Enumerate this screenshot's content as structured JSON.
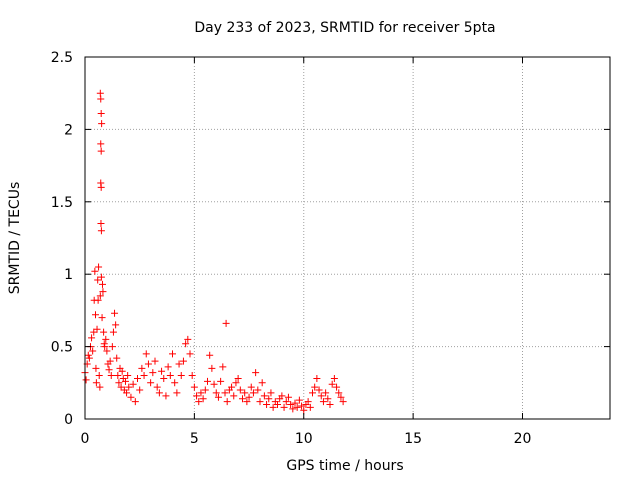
{
  "chart_data": {
    "type": "scatter",
    "title": "Day 233 of 2023, SRMTID for receiver 5pta",
    "xlabel": "GPS time / hours",
    "ylabel": "SRMTID / TECUs",
    "xlim": [
      0,
      24
    ],
    "ylim": [
      0,
      2.5
    ],
    "x_ticks": [
      0,
      5,
      10,
      15,
      20
    ],
    "x_tick_labels": [
      "0",
      "5",
      "10",
      "15",
      "20"
    ],
    "y_ticks": [
      0,
      0.5,
      1,
      1.5,
      2,
      2.5
    ],
    "y_tick_labels": [
      "0",
      "0.5",
      "1",
      "1.5",
      "2",
      "2.5"
    ],
    "grid": true,
    "marker": "+",
    "color": "#ff0000",
    "series": [
      {
        "name": "SRMTID",
        "points": [
          [
            0.0,
            0.32
          ],
          [
            0.05,
            0.27
          ],
          [
            0.1,
            0.38
          ],
          [
            0.15,
            0.44
          ],
          [
            0.2,
            0.42
          ],
          [
            0.25,
            0.5
          ],
          [
            0.3,
            0.56
          ],
          [
            0.35,
            0.47
          ],
          [
            0.4,
            0.6
          ],
          [
            0.42,
            0.82
          ],
          [
            0.45,
            1.02
          ],
          [
            0.48,
            0.72
          ],
          [
            0.5,
            0.35
          ],
          [
            0.52,
            0.25
          ],
          [
            0.55,
            0.62
          ],
          [
            0.58,
            0.96
          ],
          [
            0.6,
            0.82
          ],
          [
            0.62,
            1.05
          ],
          [
            0.65,
            0.3
          ],
          [
            0.68,
            0.22
          ],
          [
            0.7,
            0.85
          ],
          [
            0.7,
            2.25
          ],
          [
            0.72,
            2.21
          ],
          [
            0.74,
            2.11
          ],
          [
            0.76,
            2.04
          ],
          [
            0.72,
            1.9
          ],
          [
            0.74,
            1.85
          ],
          [
            0.72,
            1.63
          ],
          [
            0.74,
            1.6
          ],
          [
            0.73,
            1.35
          ],
          [
            0.75,
            1.3
          ],
          [
            0.75,
            0.98
          ],
          [
            0.78,
            0.7
          ],
          [
            0.8,
            0.93
          ],
          [
            0.82,
            0.88
          ],
          [
            0.85,
            0.6
          ],
          [
            0.88,
            0.52
          ],
          [
            0.9,
            0.5
          ],
          [
            0.95,
            0.55
          ],
          [
            1.0,
            0.47
          ],
          [
            1.05,
            0.38
          ],
          [
            1.1,
            0.34
          ],
          [
            1.15,
            0.4
          ],
          [
            1.2,
            0.3
          ],
          [
            1.25,
            0.5
          ],
          [
            1.3,
            0.6
          ],
          [
            1.35,
            0.73
          ],
          [
            1.4,
            0.65
          ],
          [
            1.45,
            0.42
          ],
          [
            1.5,
            0.3
          ],
          [
            1.55,
            0.25
          ],
          [
            1.6,
            0.35
          ],
          [
            1.65,
            0.22
          ],
          [
            1.7,
            0.33
          ],
          [
            1.75,
            0.28
          ],
          [
            1.8,
            0.2
          ],
          [
            1.85,
            0.26
          ],
          [
            1.9,
            0.18
          ],
          [
            1.95,
            0.3
          ],
          [
            2.0,
            0.22
          ],
          [
            2.1,
            0.15
          ],
          [
            2.2,
            0.24
          ],
          [
            2.3,
            0.12
          ],
          [
            2.4,
            0.28
          ],
          [
            2.5,
            0.2
          ],
          [
            2.6,
            0.35
          ],
          [
            2.7,
            0.3
          ],
          [
            2.8,
            0.45
          ],
          [
            2.9,
            0.38
          ],
          [
            3.0,
            0.25
          ],
          [
            3.1,
            0.32
          ],
          [
            3.2,
            0.4
          ],
          [
            3.3,
            0.22
          ],
          [
            3.4,
            0.18
          ],
          [
            3.5,
            0.33
          ],
          [
            3.6,
            0.28
          ],
          [
            3.7,
            0.16
          ],
          [
            3.8,
            0.36
          ],
          [
            3.9,
            0.3
          ],
          [
            4.0,
            0.45
          ],
          [
            4.1,
            0.25
          ],
          [
            4.2,
            0.18
          ],
          [
            4.3,
            0.38
          ],
          [
            4.4,
            0.3
          ],
          [
            4.5,
            0.4
          ],
          [
            4.6,
            0.52
          ],
          [
            4.7,
            0.55
          ],
          [
            4.8,
            0.45
          ],
          [
            4.9,
            0.3
          ],
          [
            5.0,
            0.22
          ],
          [
            5.1,
            0.16
          ],
          [
            5.2,
            0.12
          ],
          [
            5.3,
            0.18
          ],
          [
            5.4,
            0.14
          ],
          [
            5.5,
            0.2
          ],
          [
            5.6,
            0.26
          ],
          [
            5.7,
            0.44
          ],
          [
            5.8,
            0.35
          ],
          [
            5.9,
            0.24
          ],
          [
            6.0,
            0.18
          ],
          [
            6.1,
            0.15
          ],
          [
            6.2,
            0.26
          ],
          [
            6.3,
            0.36
          ],
          [
            6.4,
            0.18
          ],
          [
            6.45,
            0.66
          ],
          [
            6.5,
            0.12
          ],
          [
            6.6,
            0.2
          ],
          [
            6.7,
            0.22
          ],
          [
            6.8,
            0.16
          ],
          [
            6.9,
            0.25
          ],
          [
            7.0,
            0.28
          ],
          [
            7.1,
            0.2
          ],
          [
            7.2,
            0.14
          ],
          [
            7.3,
            0.18
          ],
          [
            7.4,
            0.12
          ],
          [
            7.5,
            0.15
          ],
          [
            7.6,
            0.22
          ],
          [
            7.7,
            0.18
          ],
          [
            7.8,
            0.32
          ],
          [
            7.9,
            0.2
          ],
          [
            8.0,
            0.12
          ],
          [
            8.1,
            0.25
          ],
          [
            8.2,
            0.16
          ],
          [
            8.3,
            0.1
          ],
          [
            8.4,
            0.14
          ],
          [
            8.5,
            0.18
          ],
          [
            8.6,
            0.08
          ],
          [
            8.7,
            0.12
          ],
          [
            8.8,
            0.1
          ],
          [
            8.9,
            0.14
          ],
          [
            9.0,
            0.16
          ],
          [
            9.1,
            0.08
          ],
          [
            9.2,
            0.12
          ],
          [
            9.3,
            0.15
          ],
          [
            9.4,
            0.1
          ],
          [
            9.5,
            0.07
          ],
          [
            9.6,
            0.11
          ],
          [
            9.7,
            0.08
          ],
          [
            9.8,
            0.13
          ],
          [
            9.9,
            0.09
          ],
          [
            10.0,
            0.06
          ],
          [
            10.1,
            0.1
          ],
          [
            10.2,
            0.12
          ],
          [
            10.3,
            0.08
          ],
          [
            10.4,
            0.18
          ],
          [
            10.5,
            0.22
          ],
          [
            10.6,
            0.28
          ],
          [
            10.7,
            0.2
          ],
          [
            10.8,
            0.16
          ],
          [
            10.9,
            0.12
          ],
          [
            11.0,
            0.18
          ],
          [
            11.1,
            0.14
          ],
          [
            11.2,
            0.1
          ],
          [
            11.3,
            0.24
          ],
          [
            11.4,
            0.28
          ],
          [
            11.5,
            0.22
          ],
          [
            11.6,
            0.18
          ],
          [
            11.7,
            0.15
          ],
          [
            11.8,
            0.12
          ]
        ]
      }
    ]
  }
}
